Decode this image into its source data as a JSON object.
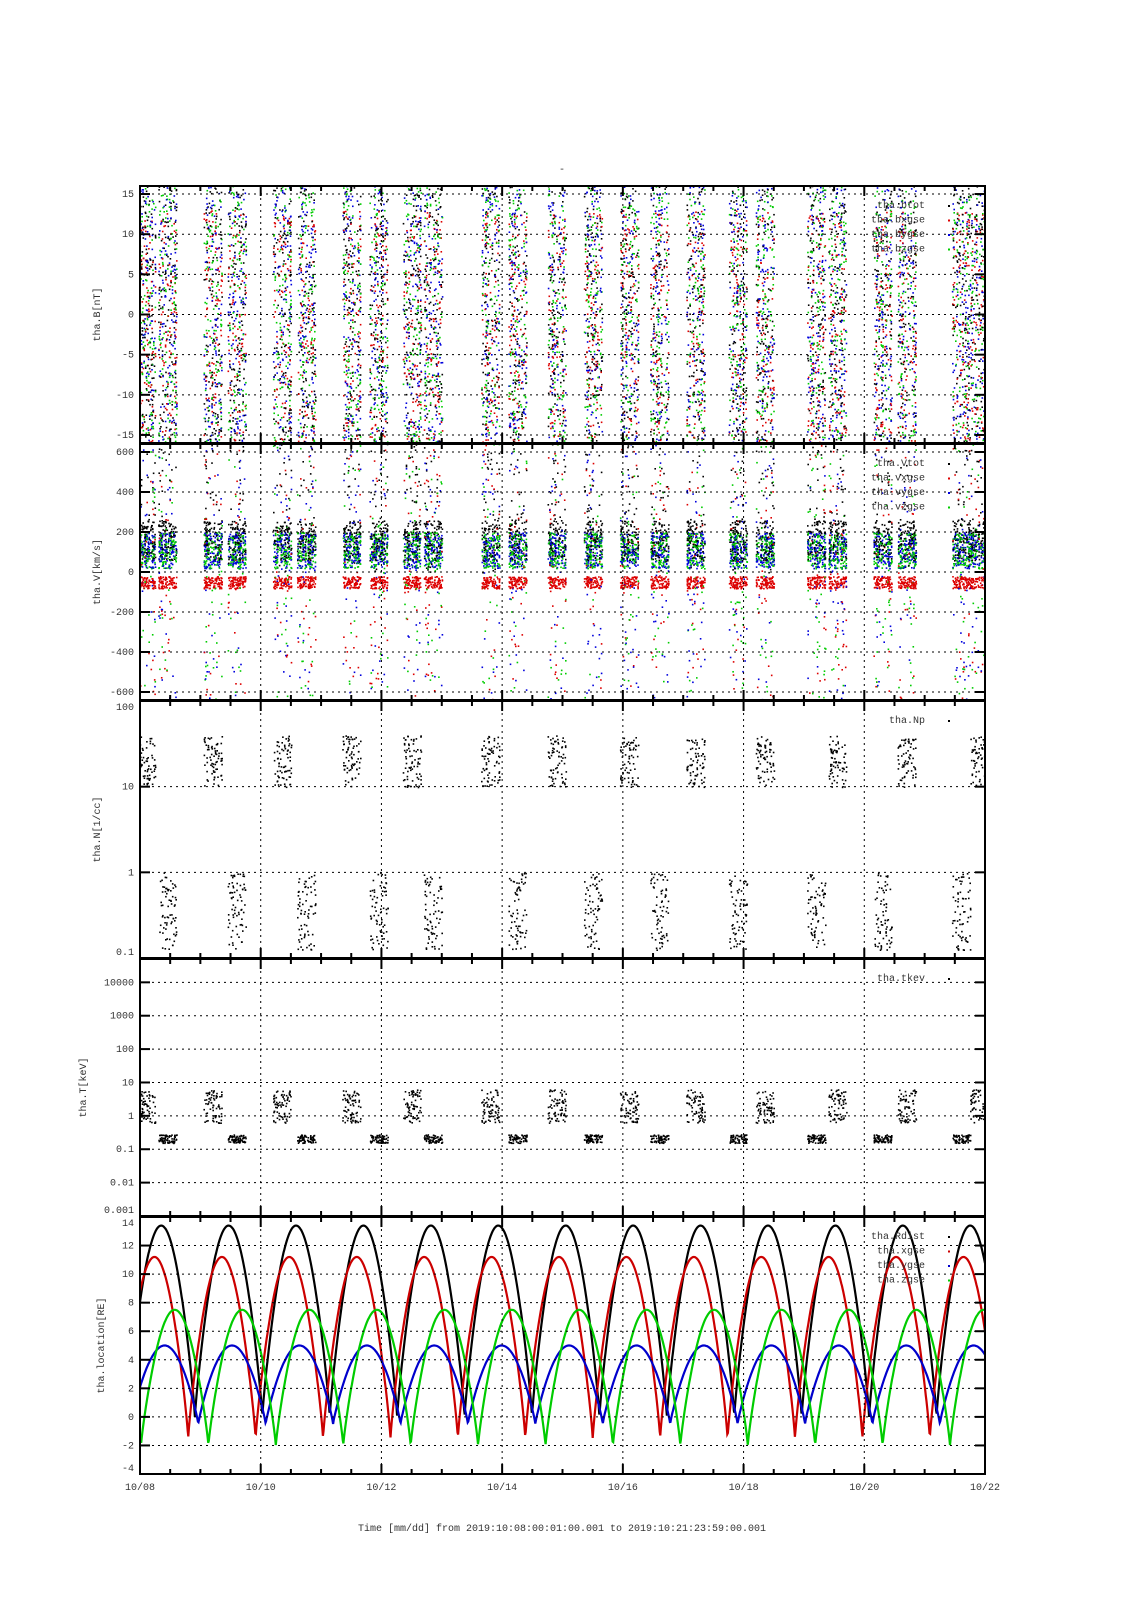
{
  "chart_data": {
    "type": "scatter",
    "title": "-",
    "xlabel": "Time [mm/dd]  from 2019:10:08:00:01:00.001  to  2019:10:21:23:59:00.001",
    "x_range_days": [
      0,
      14
    ],
    "x_ticks": [
      "10/08",
      "10/10",
      "10/12",
      "10/14",
      "10/16",
      "10/18",
      "10/20",
      "10/22"
    ],
    "orbit": {
      "period_days": 1.117,
      "first_perigee_day": 0.91
    },
    "burst_days": [
      0.1,
      0.45,
      1.2,
      1.6,
      2.35,
      2.75,
      3.5,
      3.95,
      4.5,
      4.85,
      5.8,
      6.25,
      6.9,
      7.5,
      8.1,
      8.6,
      9.2,
      9.9,
      10.35,
      11.2,
      11.55,
      12.3,
      12.7,
      13.6,
      13.9
    ],
    "panels": [
      {
        "ylabel": "tha.B[nT]",
        "scale": "linear",
        "ylim": [
          -16,
          16
        ],
        "yticks": [
          "-15",
          "-10",
          "-5",
          "0",
          "5",
          "10",
          "15"
        ],
        "ytick_values": [
          -15,
          -10,
          -5,
          0,
          5,
          10,
          15
        ],
        "series": [
          {
            "name": "tha.btot",
            "color": "#000000"
          },
          {
            "name": "tha.bxgse",
            "color": "#dd0000"
          },
          {
            "name": "tha.bygse",
            "color": "#0000dd"
          },
          {
            "name": "tha.bzgse",
            "color": "#00cc00"
          }
        ]
      },
      {
        "ylabel": "tha.V[km/s]",
        "scale": "linear",
        "ylim": [
          -640,
          640
        ],
        "yticks": [
          "-600",
          "-400",
          "-200",
          "0",
          "200",
          "400",
          "600"
        ],
        "ytick_values": [
          -600,
          -400,
          -200,
          0,
          200,
          400,
          600
        ],
        "series": [
          {
            "name": "tha.Vtot",
            "color": "#000000"
          },
          {
            "name": "tha.vxgse",
            "color": "#dd0000"
          },
          {
            "name": "tha.vygse",
            "color": "#0000dd"
          },
          {
            "name": "tha.vzgse",
            "color": "#00cc00"
          }
        ]
      },
      {
        "ylabel": "tha.N[1/cc]",
        "scale": "log",
        "ylim": [
          0.1,
          100
        ],
        "yticks": [
          "0.1",
          "1",
          "10",
          "100"
        ],
        "ytick_values": [
          0.1,
          1,
          10,
          100
        ],
        "series": [
          {
            "name": "tha.Np",
            "color": "#000000"
          }
        ]
      },
      {
        "ylabel": "tha.T[keV]",
        "scale": "log",
        "ylim": [
          0.001,
          50000
        ],
        "yticks": [
          "0.001",
          "0.01",
          "0.1",
          "1",
          "10",
          "100",
          "1000",
          "10000"
        ],
        "ytick_values": [
          0.001,
          0.01,
          0.1,
          1,
          10,
          100,
          1000,
          10000
        ],
        "series": [
          {
            "name": "tha.tkev",
            "color": "#000000"
          }
        ]
      },
      {
        "ylabel": "tha.location[RE]",
        "scale": "linear",
        "ylim": [
          -4,
          14
        ],
        "yticks": [
          "-4",
          "-2",
          "0",
          "2",
          "4",
          "6",
          "8",
          "10",
          "12",
          "14"
        ],
        "ytick_values": [
          -4,
          -2,
          0,
          2,
          4,
          6,
          8,
          10,
          12,
          14
        ],
        "series": [
          {
            "name": "tha.Rdist",
            "color": "#000000",
            "min": 0,
            "max": 13.4,
            "shift": 0.0
          },
          {
            "name": "tha.xgse",
            "color": "#cc0000",
            "min": -1.5,
            "max": 11.2,
            "shift": -0.1
          },
          {
            "name": "tha.ygse",
            "color": "#0000cc",
            "min": -0.5,
            "max": 5.0,
            "shift": 0.05
          },
          {
            "name": "tha.zgse",
            "color": "#00cc00",
            "min": -2.0,
            "max": 7.5,
            "shift": 0.2
          }
        ]
      }
    ]
  }
}
